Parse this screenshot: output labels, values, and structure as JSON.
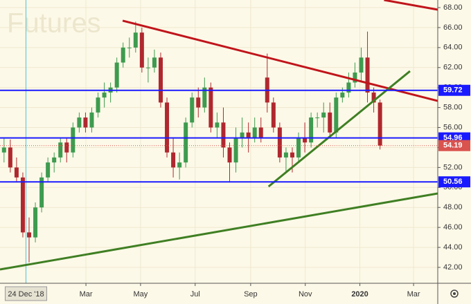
{
  "chart_data": {
    "type": "candlestick",
    "watermark": "Futures",
    "x": [
      "2018-11-26",
      "2018-12-03",
      "2018-12-10",
      "2018-12-17",
      "2018-12-24",
      "2018-12-31",
      "2019-01-07",
      "2019-01-14",
      "2019-01-21",
      "2019-01-28",
      "2019-02-04",
      "2019-02-11",
      "2019-02-18",
      "2019-02-25",
      "2019-03-04",
      "2019-03-11",
      "2019-03-18",
      "2019-03-25",
      "2019-04-01",
      "2019-04-08",
      "2019-04-15",
      "2019-04-22",
      "2019-04-29",
      "2019-05-06",
      "2019-05-13",
      "2019-05-20",
      "2019-05-27",
      "2019-06-03",
      "2019-06-10",
      "2019-06-17",
      "2019-06-24",
      "2019-07-01",
      "2019-07-08",
      "2019-07-15",
      "2019-07-22",
      "2019-07-29",
      "2019-08-05",
      "2019-08-12",
      "2019-08-19",
      "2019-08-26",
      "2019-09-02",
      "2019-09-09",
      "2019-09-16",
      "2019-09-23",
      "2019-09-30",
      "2019-10-07",
      "2019-10-14",
      "2019-10-21",
      "2019-10-28",
      "2019-11-04",
      "2019-11-11",
      "2019-11-18",
      "2019-11-25",
      "2019-12-02",
      "2019-12-09",
      "2019-12-16",
      "2019-12-23",
      "2019-12-30",
      "2020-01-06",
      "2020-01-13",
      "2020-01-20"
    ],
    "open": [
      53.5,
      54,
      52,
      51,
      45.5,
      45,
      48,
      51,
      52.5,
      53,
      54.5,
      53.5,
      56,
      57,
      56,
      57.5,
      59,
      59.5,
      60,
      62.5,
      64,
      64,
      65.5,
      62,
      62,
      63,
      58.5,
      53.5,
      52,
      52.5,
      56.5,
      59,
      58,
      60,
      56,
      56.5,
      54,
      52.5,
      55,
      55.5,
      55,
      56,
      61,
      58.5,
      56,
      53,
      53.5,
      53,
      55,
      54.5,
      57,
      57,
      57.5,
      55.5,
      59,
      59.5,
      60.5,
      61.5,
      63,
      59.5,
      58.5
    ],
    "high": [
      55,
      54.8,
      53,
      51.5,
      47,
      48.5,
      51.5,
      53,
      53.5,
      55,
      55,
      56.5,
      57.5,
      57.5,
      58,
      59.5,
      60.5,
      60.5,
      63,
      64.5,
      65,
      66.6,
      66,
      63,
      63.8,
      63.5,
      59,
      55,
      53.5,
      57,
      59.5,
      60,
      61,
      60.5,
      57.5,
      58,
      54.5,
      56,
      57,
      56.5,
      57,
      57,
      63.4,
      59,
      56.5,
      54,
      54,
      55.5,
      56.5,
      57.5,
      57.5,
      58.5,
      58.5,
      59.5,
      60,
      61.5,
      62.5,
      64,
      65.6,
      60,
      58.8
    ],
    "low": [
      52.5,
      51.5,
      50.5,
      45,
      42.5,
      44.5,
      47.5,
      50.5,
      51.5,
      52.5,
      52.5,
      53,
      55.5,
      55.5,
      55.5,
      57,
      58,
      58.5,
      59.5,
      62,
      63,
      63.5,
      61.5,
      60.5,
      61.5,
      58,
      53,
      51,
      50.8,
      52,
      56,
      57,
      57.5,
      55.5,
      55,
      53,
      50.5,
      51.5,
      54,
      53.5,
      54.5,
      54.5,
      57.5,
      55.5,
      52.5,
      51.5,
      51.5,
      52.5,
      53.5,
      54,
      56,
      55.5,
      55,
      55,
      58.5,
      59,
      60,
      60.5,
      58.5,
      57.5,
      53.8
    ],
    "close": [
      54,
      52,
      51,
      45.5,
      45,
      48,
      51,
      52.5,
      53,
      54.5,
      53.5,
      56,
      57,
      56,
      57.5,
      59,
      59.5,
      60,
      62.5,
      64,
      64,
      65.5,
      62,
      62,
      63,
      58.5,
      53.5,
      52,
      52.5,
      56.5,
      59,
      58,
      60,
      56,
      56.5,
      54,
      52.5,
      55,
      55.5,
      55,
      56,
      55,
      58.5,
      56,
      53,
      53.5,
      53,
      55,
      54.5,
      57,
      57,
      57.5,
      55.5,
      59,
      59.5,
      60.5,
      61.5,
      63,
      59.5,
      58.5,
      54.19
    ],
    "up_color": "#3e9b4f",
    "down_color": "#b0282f",
    "xlim": [
      "2018-11-25",
      "2020-03-28"
    ],
    "xticks": [
      {
        "value": "2019-03-01",
        "label": "Mar"
      },
      {
        "value": "2019-05-01",
        "label": "May"
      },
      {
        "value": "2019-07-01",
        "label": "Jul"
      },
      {
        "value": "2019-09-01",
        "label": "Sep"
      },
      {
        "value": "2019-11-01",
        "label": "Nov"
      },
      {
        "value": "2020-01-01",
        "label": "2020"
      },
      {
        "value": "2020-03-01",
        "label": "Mar"
      }
    ],
    "crosshair": {
      "x": "2018-12-24",
      "label": "24 Dec '18",
      "color": "#4fc3d9"
    },
    "ylim": [
      40.41,
      68.76
    ],
    "yticks": [
      {
        "value": 42,
        "label": "42.00"
      },
      {
        "value": 44,
        "label": "44.00"
      },
      {
        "value": 46,
        "label": "46.00"
      },
      {
        "value": 48,
        "label": "48.00"
      },
      {
        "value": 50,
        "label": "50.00"
      },
      {
        "value": 52,
        "label": "52.00"
      },
      {
        "value": 54,
        "label": "54.00"
      },
      {
        "value": 56,
        "label": "56.00"
      },
      {
        "value": 58,
        "label": "58.00"
      },
      {
        "value": 60,
        "label": "60.00"
      },
      {
        "value": 62,
        "label": "62.00"
      },
      {
        "value": 64,
        "label": "64.00"
      },
      {
        "value": 66,
        "label": "66.00"
      },
      {
        "value": 68,
        "label": "68.00"
      }
    ],
    "grid": true,
    "levels": [
      {
        "value": 59.72,
        "color": "#1a1aff"
      },
      {
        "value": 54.96,
        "color": "#1a1aff"
      },
      {
        "value": 50.56,
        "color": "#1a1aff"
      }
    ],
    "last_price": {
      "value": 54.19,
      "color": "#d9534f"
    },
    "trend_lines": [
      {
        "color": "#c0151b",
        "x": [
          "2019-04-11",
          "2020-03-28"
        ],
        "y": [
          66.69,
          58.66
        ]
      },
      {
        "color": "#c0151b",
        "x": [
          "2020-01-28",
          "2020-03-28"
        ],
        "y": [
          68.76,
          67.79
        ]
      },
      {
        "color": "#3f7f23",
        "x": [
          "2018-11-25",
          "2020-03-28"
        ],
        "y": [
          41.79,
          49.4
        ]
      },
      {
        "color": "#3f7f23",
        "x": [
          "2019-09-21",
          "2020-02-26"
        ],
        "y": [
          50.09,
          61.64
        ]
      }
    ]
  }
}
